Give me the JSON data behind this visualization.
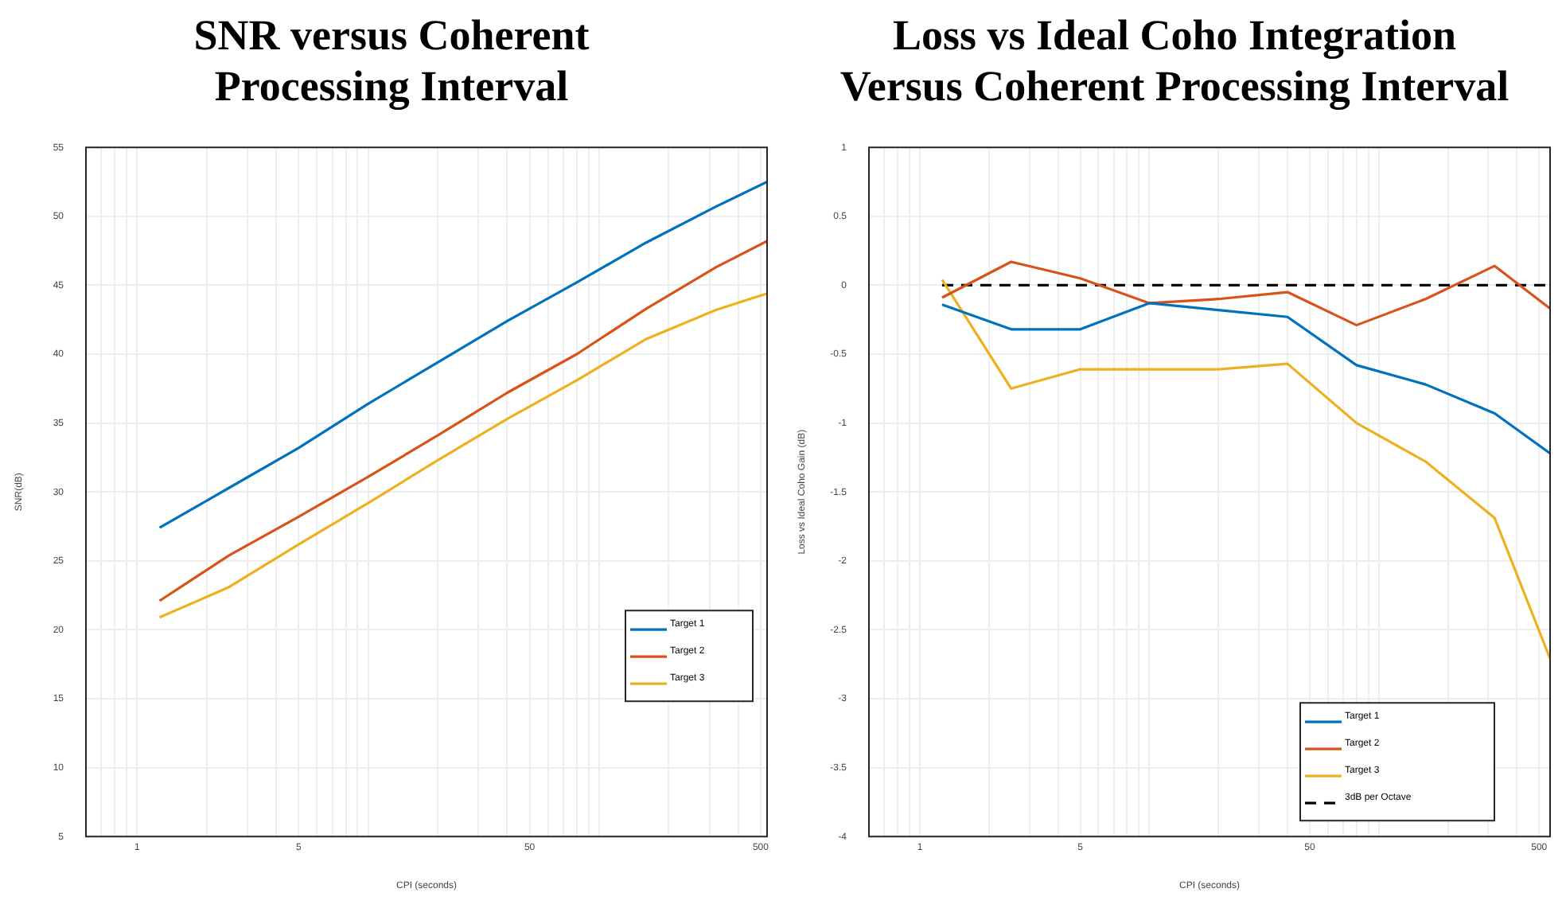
{
  "chart_data": [
    {
      "type": "line",
      "title": "SNR versus Coherent\nProcessing Interval",
      "xlabel": "CPI (seconds)",
      "ylabel": "SNR(dB)",
      "log": "x",
      "grid": true,
      "legend": "bottom right",
      "marker": "none",
      "line_style": "solid",
      "xlim": [
        0.625,
        533
      ],
      "ylim": [
        5,
        55
      ],
      "xticks": [
        {
          "value": 0.7,
          "label": null
        },
        {
          "value": 0.8,
          "label": null
        },
        {
          "value": 0.9,
          "label": null
        },
        1,
        {
          "value": 2,
          "label": null
        },
        {
          "value": 3,
          "label": null
        },
        {
          "value": 4,
          "label": null
        },
        5,
        {
          "value": 6,
          "label": null
        },
        {
          "value": 7,
          "label": null
        },
        {
          "value": 8,
          "label": null
        },
        {
          "value": 9,
          "label": null
        },
        {
          "value": 10,
          "label": null
        },
        {
          "value": 20,
          "label": null
        },
        {
          "value": 30,
          "label": null
        },
        {
          "value": 40,
          "label": null
        },
        50,
        {
          "value": 60,
          "label": null
        },
        {
          "value": 70,
          "label": null
        },
        {
          "value": 80,
          "label": null
        },
        {
          "value": 90,
          "label": null
        },
        {
          "value": 100,
          "label": null
        },
        {
          "value": 200,
          "label": null
        },
        {
          "value": 300,
          "label": null
        },
        {
          "value": 400,
          "label": null
        },
        500
      ],
      "yticks": [
        5,
        10,
        15,
        20,
        25,
        30,
        35,
        40,
        45,
        50,
        55
      ],
      "x": [
        1.25,
        2.5,
        5,
        10,
        20,
        40,
        80,
        160,
        320,
        533
      ],
      "series": [
        {
          "name": "Target 1",
          "color": "#0072bd",
          "values": [
            27.4,
            30.3,
            33.2,
            36.4,
            39.4,
            42.4,
            45.2,
            48.1,
            50.7,
            52.5
          ]
        },
        {
          "name": "Target 2",
          "color": "#d95319",
          "values": [
            22.1,
            25.4,
            28.2,
            31.1,
            34.1,
            37.2,
            40.0,
            43.3,
            46.3,
            48.2
          ]
        },
        {
          "name": "Target 3",
          "color": "#edb120",
          "values": [
            20.9,
            23.1,
            26.2,
            29.2,
            32.3,
            35.3,
            38.1,
            41.1,
            43.2,
            44.4
          ]
        }
      ]
    },
    {
      "type": "line",
      "title": "Loss vs Ideal Coho Integration\nVersus Coherent Processing Interval",
      "xlabel": "CPI (seconds)",
      "ylabel": "Loss vs Ideal Coho Gain (dB)",
      "log": "x",
      "grid": true,
      "legend": "bottom right",
      "marker": "none",
      "line_style": "solid",
      "xlim": [
        0.625,
        558
      ],
      "ylim": [
        -4,
        1
      ],
      "xticks": [
        {
          "value": 0.7,
          "label": null
        },
        {
          "value": 0.8,
          "label": null
        },
        {
          "value": 0.9,
          "label": null
        },
        1,
        {
          "value": 2,
          "label": null
        },
        {
          "value": 3,
          "label": null
        },
        {
          "value": 4,
          "label": null
        },
        5,
        {
          "value": 6,
          "label": null
        },
        {
          "value": 7,
          "label": null
        },
        {
          "value": 8,
          "label": null
        },
        {
          "value": 9,
          "label": null
        },
        {
          "value": 10,
          "label": null
        },
        {
          "value": 20,
          "label": null
        },
        {
          "value": 30,
          "label": null
        },
        {
          "value": 40,
          "label": null
        },
        50,
        {
          "value": 60,
          "label": null
        },
        {
          "value": 70,
          "label": null
        },
        {
          "value": 80,
          "label": null
        },
        {
          "value": 90,
          "label": null
        },
        {
          "value": 100,
          "label": null
        },
        {
          "value": 200,
          "label": null
        },
        {
          "value": 300,
          "label": null
        },
        {
          "value": 400,
          "label": null
        },
        500
      ],
      "yticks": [
        -4,
        -3.5,
        -3,
        -2.5,
        -2,
        -1.5,
        -1,
        -0.5,
        0,
        0.5,
        1
      ],
      "x": [
        1.25,
        2.5,
        5,
        10,
        20,
        40,
        80,
        160,
        320,
        558
      ],
      "series": [
        {
          "name": "Target 1",
          "color": "#0072bd",
          "values": [
            -0.14,
            -0.32,
            -0.32,
            -0.13,
            -0.18,
            -0.23,
            -0.58,
            -0.72,
            -0.93,
            -1.22
          ]
        },
        {
          "name": "Target 2",
          "color": "#d95319",
          "values": [
            -0.09,
            0.17,
            0.05,
            -0.13,
            -0.1,
            -0.05,
            -0.29,
            -0.1,
            0.14,
            -0.17
          ]
        },
        {
          "name": "Target 3",
          "color": "#edb120",
          "values": [
            0.04,
            -0.75,
            -0.61,
            -0.61,
            -0.61,
            -0.57,
            -1.0,
            -1.28,
            -1.69,
            -2.71
          ]
        },
        {
          "name": "3dB per Octave",
          "color": "#000000",
          "line_style": "dashed",
          "x": [
            1.25,
            558
          ],
          "values": [
            0,
            0
          ]
        }
      ]
    }
  ]
}
